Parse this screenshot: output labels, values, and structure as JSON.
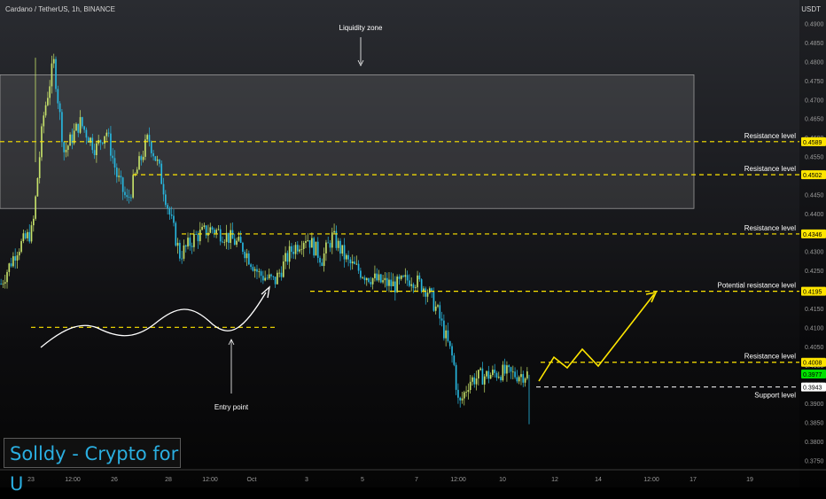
{
  "header": {
    "symbol": "Cardano / TetherUS, 1h, BINANCE",
    "currency": "USDT"
  },
  "brand": "Solldy - Crypto for U",
  "colors": {
    "up": "#c6e26a",
    "down": "#27b8e0",
    "level": "#ffe600",
    "text": "#ffffff",
    "support": "#ffffff",
    "current": "#00e000"
  },
  "chart_data": {
    "type": "candlestick",
    "ylim": [
      0.3725,
      0.492
    ],
    "ticks": [
      0.375,
      0.38,
      0.385,
      0.39,
      0.395,
      0.4,
      0.405,
      0.41,
      0.415,
      0.42,
      0.425,
      0.43,
      0.435,
      0.44,
      0.445,
      0.45,
      0.455,
      0.46,
      0.465,
      0.47,
      0.475,
      0.48,
      0.485,
      0.49
    ],
    "xlabels": [
      "23",
      "12:00",
      "26",
      "28",
      "12:00",
      "Oct",
      "3",
      "5",
      "7",
      "12:00",
      "10",
      "12",
      "14",
      "12:00",
      "17",
      "19"
    ],
    "levels": [
      {
        "label": "Resistance level",
        "value": 0.4589
      },
      {
        "label": "Resistance level",
        "value": 0.4502
      },
      {
        "label": "Resistance level",
        "value": 0.4346
      },
      {
        "label": "Potential resistance level",
        "value": 0.4195
      },
      {
        "label": "Resistance level",
        "value": 0.4008
      }
    ],
    "support": {
      "label": "Support level",
      "value": 0.3943
    },
    "current_price": 0.3977,
    "zone": {
      "label": "Liquidity zone",
      "top": 0.4765,
      "bottom": 0.4413
    },
    "entry": {
      "label": "Entry point",
      "value": 0.41
    },
    "path": [
      [
        0.0,
        0.4215
      ],
      [
        0.03,
        0.4305
      ],
      [
        0.06,
        0.4355
      ],
      [
        0.08,
        0.465
      ],
      [
        0.1,
        0.48
      ],
      [
        0.12,
        0.456
      ],
      [
        0.15,
        0.464
      ],
      [
        0.18,
        0.457
      ],
      [
        0.2,
        0.462
      ],
      [
        0.22,
        0.45
      ],
      [
        0.24,
        0.443
      ],
      [
        0.26,
        0.452
      ],
      [
        0.28,
        0.46
      ],
      [
        0.3,
        0.452
      ],
      [
        0.32,
        0.44
      ],
      [
        0.34,
        0.429
      ],
      [
        0.37,
        0.434
      ],
      [
        0.4,
        0.436
      ],
      [
        0.43,
        0.434
      ],
      [
        0.46,
        0.431
      ],
      [
        0.49,
        0.424
      ],
      [
        0.52,
        0.422
      ],
      [
        0.55,
        0.43
      ],
      [
        0.58,
        0.434
      ],
      [
        0.61,
        0.428
      ],
      [
        0.63,
        0.434
      ],
      [
        0.66,
        0.427
      ],
      [
        0.69,
        0.424
      ],
      [
        0.72,
        0.422
      ],
      [
        0.75,
        0.421
      ],
      [
        0.78,
        0.423
      ],
      [
        0.81,
        0.42
      ],
      [
        0.83,
        0.414
      ],
      [
        0.86,
        0.401
      ],
      [
        0.87,
        0.389
      ],
      [
        0.89,
        0.396
      ],
      [
        0.91,
        0.397
      ],
      [
        0.93,
        0.3975
      ],
      [
        0.95,
        0.3982
      ],
      [
        0.97,
        0.3975
      ],
      [
        1.0,
        0.3977
      ]
    ]
  }
}
